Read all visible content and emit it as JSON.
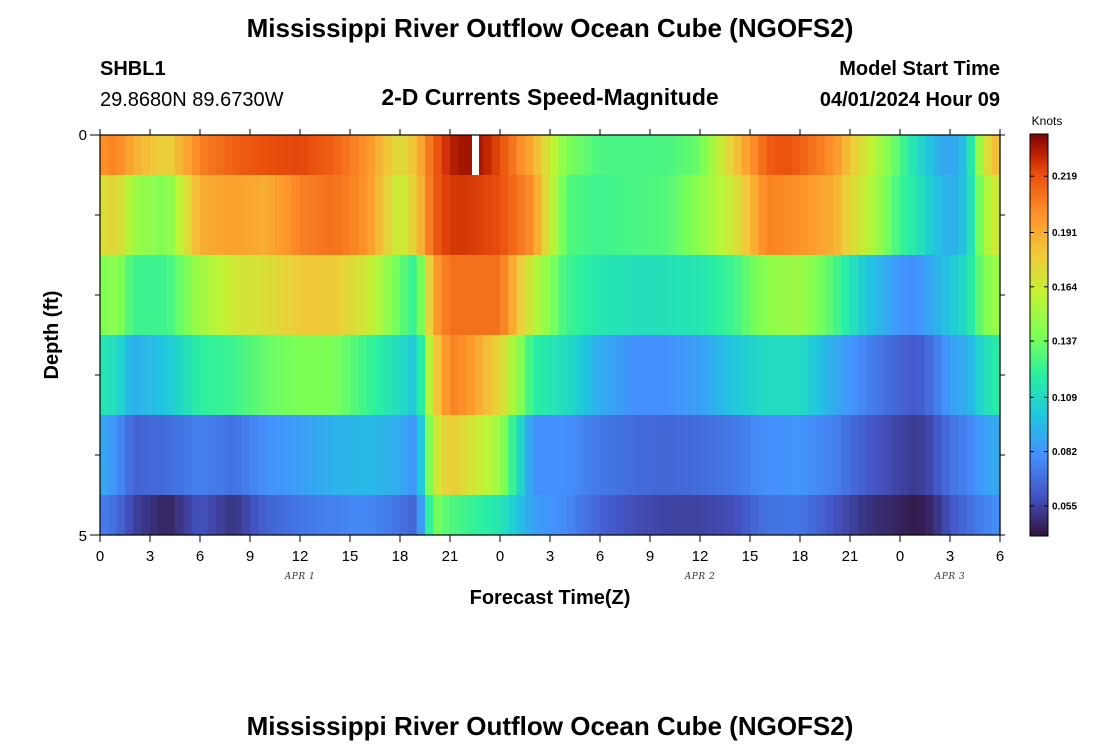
{
  "header": {
    "title": "Mississippi River Outflow Ocean Cube (NGOFS2)",
    "station": "SHBL1",
    "coords": "29.8680N  89.6730W",
    "subtitle": "2-D Currents Speed-Magnitude",
    "model_label": "Model Start Time",
    "model_time": "04/01/2024 Hour 09"
  },
  "footer": {
    "title": "Mississippi River Outflow Ocean Cube (NGOFS2)"
  },
  "chart_data": {
    "type": "heatmap",
    "xlabel": "Forecast Time(Z)",
    "ylabel": "Depth (ft)",
    "y_ticks": [
      "0",
      "5"
    ],
    "x_tick_labels": [
      "0",
      "3",
      "6",
      "9",
      "12",
      "15",
      "18",
      "21",
      "0",
      "3",
      "6",
      "9",
      "12",
      "15",
      "18",
      "21",
      "0",
      "3",
      "6"
    ],
    "date_labels": [
      "APR 1",
      "APR 2",
      "APR 3"
    ],
    "colorbar": {
      "title": "Knots",
      "ticks": [
        "0.219",
        "0.191",
        "0.164",
        "0.137",
        "0.109",
        "0.082",
        "0.055"
      ],
      "range": [
        0.04,
        0.24
      ]
    },
    "cells_per_hour": 2,
    "hours": 54,
    "gap": {
      "x": 22.5,
      "layer": 0
    },
    "layers": [
      {
        "depth": "layer 1 (surface)",
        "x": [
          0,
          1,
          2,
          4,
          6,
          8,
          10,
          12,
          14,
          16,
          18,
          19,
          20,
          21,
          22,
          23,
          24,
          26,
          28,
          30,
          32,
          34,
          36,
          38,
          40,
          41,
          42,
          44,
          46,
          48,
          49,
          50,
          51,
          52,
          53,
          54
        ],
        "values": [
          0.2,
          0.205,
          0.19,
          0.175,
          0.205,
          0.215,
          0.22,
          0.222,
          0.215,
          0.2,
          0.17,
          0.185,
          0.215,
          0.23,
          0.235,
          0.232,
          0.22,
          0.19,
          0.14,
          0.128,
          0.128,
          0.128,
          0.135,
          0.18,
          0.215,
          0.22,
          0.215,
          0.2,
          0.165,
          0.13,
          0.11,
          0.095,
          0.085,
          0.1,
          0.165,
          0.19
        ]
      },
      {
        "depth": "layer 2",
        "x": [
          0,
          1,
          2,
          4,
          6,
          8,
          10,
          12,
          14,
          16,
          18,
          19,
          20,
          21,
          22,
          24,
          26,
          28,
          30,
          32,
          34,
          36,
          38,
          40,
          42,
          44,
          46,
          48,
          49,
          50,
          51,
          52,
          53,
          54
        ],
        "values": [
          0.17,
          0.175,
          0.15,
          0.14,
          0.19,
          0.195,
          0.19,
          0.205,
          0.21,
          0.2,
          0.16,
          0.18,
          0.215,
          0.225,
          0.225,
          0.22,
          0.2,
          0.13,
          0.125,
          0.128,
          0.13,
          0.145,
          0.165,
          0.205,
          0.2,
          0.19,
          0.16,
          0.125,
          0.115,
          0.1,
          0.09,
          0.1,
          0.15,
          0.17
        ]
      },
      {
        "depth": "layer 3",
        "x": [
          0,
          1,
          2,
          4,
          6,
          8,
          10,
          12,
          14,
          16,
          18,
          19,
          20,
          21,
          22,
          24,
          26,
          28,
          30,
          32,
          34,
          36,
          38,
          40,
          42,
          44,
          46,
          48,
          49,
          50,
          51,
          52,
          53,
          54
        ],
        "values": [
          0.14,
          0.145,
          0.125,
          0.125,
          0.15,
          0.165,
          0.17,
          0.18,
          0.18,
          0.165,
          0.135,
          0.12,
          0.195,
          0.21,
          0.21,
          0.21,
          0.16,
          0.125,
          0.115,
          0.112,
          0.112,
          0.115,
          0.125,
          0.145,
          0.15,
          0.13,
          0.1,
          0.082,
          0.08,
          0.09,
          0.1,
          0.11,
          0.14,
          0.15
        ]
      },
      {
        "depth": "layer 4",
        "x": [
          0,
          1,
          2,
          4,
          6,
          8,
          10,
          12,
          14,
          16,
          18,
          19,
          20,
          21,
          22,
          24,
          26,
          28,
          30,
          32,
          34,
          36,
          38,
          40,
          42,
          44,
          46,
          48,
          49,
          50,
          51,
          52,
          53,
          54
        ],
        "values": [
          0.115,
          0.11,
          0.09,
          0.1,
          0.12,
          0.125,
          0.135,
          0.14,
          0.14,
          0.125,
          0.11,
          0.1,
          0.175,
          0.205,
          0.2,
          0.175,
          0.12,
          0.11,
          0.09,
          0.08,
          0.08,
          0.085,
          0.1,
          0.11,
          0.11,
          0.09,
          0.075,
          0.065,
          0.062,
          0.07,
          0.085,
          0.09,
          0.11,
          0.12
        ]
      },
      {
        "depth": "layer 5",
        "x": [
          0,
          1,
          2,
          4,
          6,
          8,
          10,
          12,
          14,
          16,
          18,
          19,
          20,
          21,
          22,
          24,
          26,
          28,
          30,
          32,
          34,
          36,
          38,
          40,
          42,
          44,
          46,
          48,
          49,
          50,
          51,
          52,
          53,
          54
        ],
        "values": [
          0.09,
          0.08,
          0.065,
          0.068,
          0.075,
          0.07,
          0.08,
          0.085,
          0.092,
          0.095,
          0.09,
          0.08,
          0.16,
          0.18,
          0.17,
          0.15,
          0.08,
          0.08,
          0.072,
          0.068,
          0.066,
          0.068,
          0.072,
          0.08,
          0.082,
          0.075,
          0.062,
          0.055,
          0.052,
          0.058,
          0.07,
          0.075,
          0.085,
          0.09
        ]
      },
      {
        "depth": "layer 6 (bottom)",
        "x": [
          0,
          1,
          2,
          4,
          6,
          8,
          10,
          12,
          14,
          16,
          18,
          19,
          20,
          21,
          22,
          24,
          26,
          28,
          30,
          32,
          34,
          36,
          38,
          40,
          42,
          44,
          46,
          48,
          49,
          50,
          51,
          52,
          53,
          54
        ],
        "values": [
          0.075,
          0.068,
          0.055,
          0.045,
          0.06,
          0.05,
          0.065,
          0.072,
          0.075,
          0.078,
          0.07,
          0.065,
          0.14,
          0.13,
          0.125,
          0.115,
          0.085,
          0.078,
          0.065,
          0.058,
          0.055,
          0.055,
          0.058,
          0.07,
          0.072,
          0.06,
          0.05,
          0.045,
          0.042,
          0.048,
          0.06,
          0.068,
          0.075,
          0.08
        ]
      }
    ]
  }
}
